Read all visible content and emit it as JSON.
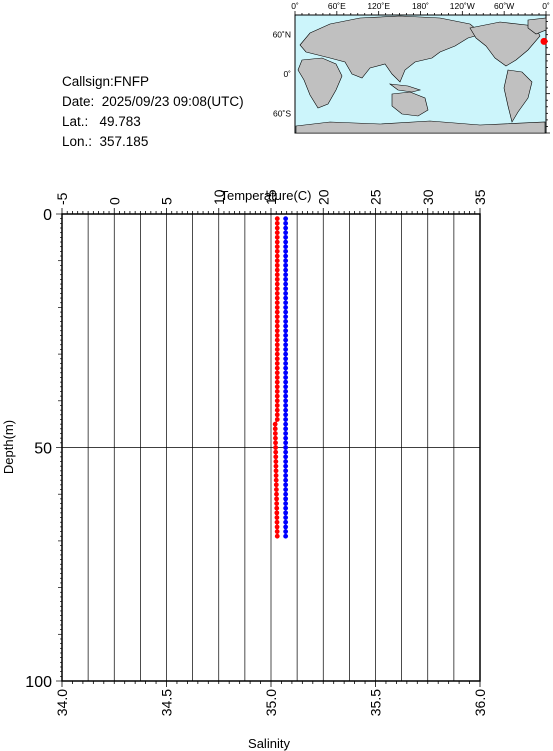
{
  "info": {
    "callsign": "Callsign:FNFP",
    "date": "Date:  2025/09/23 09:08(UTC)",
    "lat": "Lat.:   49.783",
    "lon": "Lon.:  357.185"
  },
  "map": {
    "top_labels": [
      "0˚",
      "60˚E",
      "120˚E",
      "180˚",
      "120˚W",
      "60˚W",
      "0˚"
    ],
    "left_labels": [
      "60˚N",
      "0˚",
      "60˚S"
    ],
    "ocean_color": "#ccf5fb",
    "land_color": "#c0c0c0",
    "marker_color": "#ff0000",
    "marker_lon": 357.185,
    "marker_lat": 49.783
  },
  "chart_data": {
    "type": "line",
    "top_axis_label": "Temperature(C)",
    "bottom_axis_label": "Salinity",
    "left_axis_label": "Depth(m)",
    "temperature_ticks": [
      "-5",
      "0",
      "5",
      "10",
      "15",
      "20",
      "25",
      "30",
      "35"
    ],
    "salinity_ticks": [
      "34.0",
      "34.5",
      "35.0",
      "35.5",
      "36.0"
    ],
    "depth_ticks": [
      "0",
      "50",
      "100"
    ],
    "temperature_range": [
      -5,
      35
    ],
    "salinity_range": [
      34.0,
      36.0
    ],
    "depth_range": [
      0,
      100
    ],
    "grid": true,
    "series": [
      {
        "color": "#ff0000",
        "depth": [
          1,
          44,
          45,
          69
        ],
        "temperature": [
          15.6,
          15.6,
          15.4,
          15.6
        ]
      },
      {
        "color": "#0000ff",
        "depth": [
          1,
          69
        ],
        "salinity": [
          35.07,
          35.07
        ]
      }
    ]
  }
}
